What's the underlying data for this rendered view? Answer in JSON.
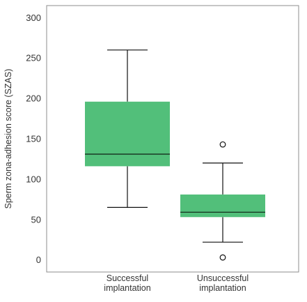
{
  "chart_data": {
    "type": "box",
    "title": "",
    "xlabel": "",
    "ylabel": "Sperm zona-adhesion score (SZAS)",
    "ylim": [
      -15,
      315
    ],
    "yticks": [
      0,
      50,
      100,
      150,
      200,
      250,
      300
    ],
    "grid": false,
    "legend": "none",
    "box_color": "#52bf7a",
    "line_color": "#111111",
    "categories": [
      {
        "label_lines": [
          "Successful",
          "implantation"
        ],
        "whisker_low": 65,
        "q1": 116,
        "median": 131,
        "q3": 196,
        "whisker_high": 260,
        "outliers": []
      },
      {
        "label_lines": [
          "Unsuccessful",
          "implantation"
        ],
        "whisker_low": 22,
        "q1": 53,
        "median": 59,
        "q3": 81,
        "whisker_high": 120,
        "outliers": [
          143,
          3
        ]
      }
    ]
  }
}
